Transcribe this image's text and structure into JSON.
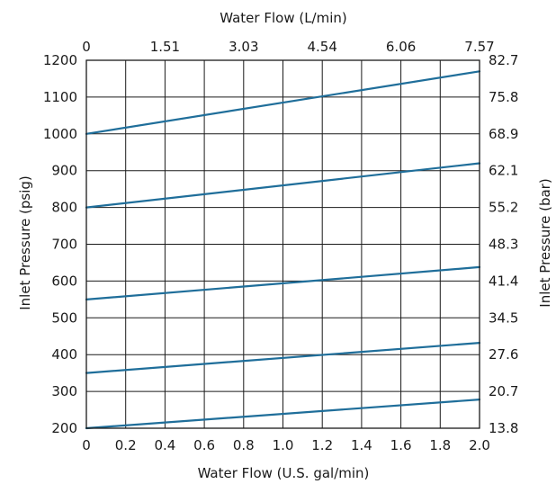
{
  "chart_data": {
    "type": "line",
    "xlabel": "Water Flow (U.S. gal/min)",
    "x2label": "Water Flow (L/min)",
    "ylabel": "Inlet Pressure (psig)",
    "y2label": "Inlet Pressure (bar)",
    "xlim": [
      0,
      2.0
    ],
    "ylim": [
      200,
      1200
    ],
    "x_ticks": [
      "0",
      "0.2",
      "0.4",
      "0.6",
      "0.8",
      "1.0",
      "1.2",
      "1.4",
      "1.6",
      "1.8",
      "2.0"
    ],
    "x2_ticks": [
      "0",
      "1.51",
      "3.03",
      "4.54",
      "6.06",
      "7.57"
    ],
    "y_ticks": [
      "200",
      "300",
      "400",
      "500",
      "600",
      "700",
      "800",
      "900",
      "1000",
      "1100",
      "1200"
    ],
    "y2_ticks": [
      "13.8",
      "20.7",
      "27.6",
      "34.5",
      "41.4",
      "48.3",
      "55.2",
      "62.1",
      "68.9",
      "75.8",
      "82.7"
    ],
    "grid": true,
    "line_color": "#1f6e9a",
    "series": [
      {
        "x": [
          0,
          2.0
        ],
        "y": [
          1000,
          1170
        ]
      },
      {
        "x": [
          0,
          2.0
        ],
        "y": [
          800,
          920
        ]
      },
      {
        "x": [
          0,
          2.0
        ],
        "y": [
          550,
          638
        ]
      },
      {
        "x": [
          0,
          2.0
        ],
        "y": [
          350,
          432
        ]
      },
      {
        "x": [
          0,
          2.0
        ],
        "y": [
          200,
          278
        ]
      }
    ]
  }
}
